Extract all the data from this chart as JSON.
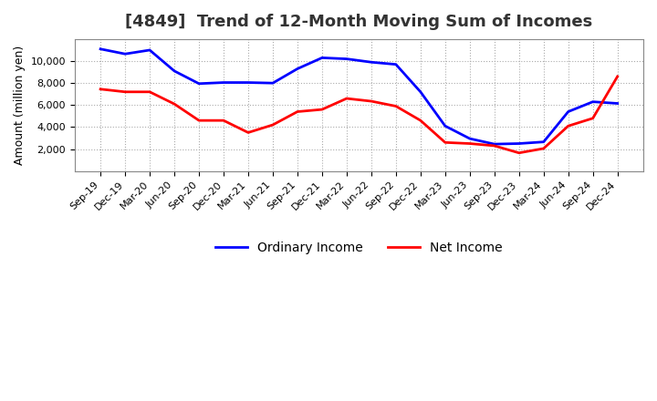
{
  "title": "[4849]  Trend of 12-Month Moving Sum of Incomes",
  "ylabel": "Amount (million yen)",
  "x_labels": [
    "Sep-19",
    "Dec-19",
    "Mar-20",
    "Jun-20",
    "Sep-20",
    "Dec-20",
    "Mar-21",
    "Jun-21",
    "Sep-21",
    "Dec-21",
    "Mar-22",
    "Jun-22",
    "Sep-22",
    "Dec-22",
    "Mar-23",
    "Jun-23",
    "Sep-23",
    "Dec-23",
    "Mar-24",
    "Jun-24",
    "Sep-24",
    "Dec-24"
  ],
  "ordinary_income": [
    11100,
    10650,
    11000,
    9100,
    7950,
    8050,
    8050,
    8000,
    9300,
    10300,
    10200,
    9900,
    9700,
    7200,
    4100,
    2950,
    2450,
    2500,
    2650,
    5400,
    6300,
    6150
  ],
  "net_income": [
    7450,
    7200,
    7200,
    6100,
    4600,
    4600,
    3500,
    4200,
    5400,
    5600,
    6600,
    6350,
    5900,
    4600,
    2600,
    2500,
    2300,
    1650,
    2050,
    4100,
    4800,
    8600
  ],
  "ordinary_income_color": "#0000FF",
  "net_income_color": "#FF0000",
  "background_color": "#FFFFFF",
  "grid_color": "#AAAAAA",
  "ylim": [
    0,
    12000
  ],
  "yticks": [
    2000,
    4000,
    6000,
    8000,
    10000
  ],
  "title_fontsize": 13,
  "title_color": "#333333",
  "axis_fontsize": 9,
  "tick_fontsize": 8,
  "legend_labels": [
    "Ordinary Income",
    "Net Income"
  ]
}
